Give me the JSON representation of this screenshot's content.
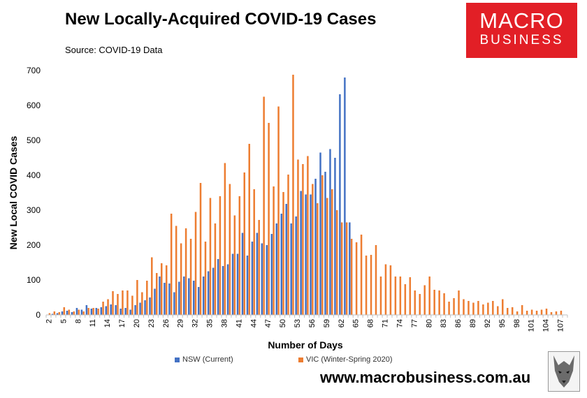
{
  "header": {
    "title": "New Locally-Acquired COVID-19 Cases",
    "source": "Source: COVID-19 Data"
  },
  "logo": {
    "line1": "MACRO",
    "line2": "BUSINESS"
  },
  "footer": {
    "website": "www.macrobusiness.com.au"
  },
  "colors": {
    "nsw": "#4472c4",
    "vic": "#ed7d31",
    "logo_bg": "#e21f26"
  },
  "chart_data": {
    "type": "bar",
    "xlabel": "Number of Days",
    "ylabel": "New Local COVID Cases",
    "ylim": [
      0,
      700
    ],
    "yticks": [
      0,
      100,
      200,
      300,
      400,
      500,
      600,
      700
    ],
    "x_start": 2,
    "x_end": 108,
    "x_tick_labels": [
      "2",
      "5",
      "8",
      "11",
      "14",
      "17",
      "20",
      "23",
      "26",
      "29",
      "32",
      "35",
      "38",
      "41",
      "44",
      "47",
      "50",
      "53",
      "56",
      "59",
      "62",
      "65",
      "68",
      "71",
      "74",
      "77",
      "80",
      "83",
      "86",
      "89",
      "92",
      "95",
      "98",
      "101",
      "104",
      "107"
    ],
    "grid": false,
    "legend": "bottom",
    "series": [
      {
        "name": "NSW (Current)",
        "values": [
          0,
          3,
          5,
          10,
          12,
          8,
          20,
          15,
          28,
          18,
          20,
          22,
          25,
          30,
          28,
          18,
          20,
          15,
          28,
          35,
          42,
          50,
          75,
          110,
          92,
          90,
          65,
          95,
          110,
          105,
          98,
          80,
          110,
          125,
          135,
          160,
          140,
          145,
          175,
          175,
          235,
          170,
          210,
          235,
          205,
          200,
          232,
          262,
          290,
          318,
          262,
          282,
          355,
          345,
          345,
          390,
          465,
          410,
          475,
          450,
          632,
          680,
          265
        ],
        "_x_start": 2
      },
      {
        "name": "VIC (Winter-Spring 2020)",
        "values": [
          5,
          10,
          8,
          22,
          15,
          10,
          15,
          10,
          20,
          20,
          18,
          38,
          45,
          68,
          60,
          70,
          70,
          55,
          100,
          65,
          98,
          165,
          120,
          148,
          142,
          290,
          255,
          205,
          248,
          218,
          295,
          378,
          210,
          335,
          262,
          340,
          435,
          375,
          285,
          340,
          408,
          490,
          360,
          272,
          625,
          550,
          368,
          597,
          352,
          402,
          688,
          445,
          432,
          455,
          375,
          320,
          400,
          335,
          360,
          300,
          265,
          265,
          218,
          208,
          230,
          170,
          172,
          200,
          110,
          145,
          142,
          110,
          110,
          88,
          108,
          70,
          60,
          85,
          110,
          72,
          70,
          62,
          38,
          48,
          70,
          45,
          40,
          35,
          40,
          30,
          35,
          40,
          25,
          45,
          20,
          22,
          10,
          28,
          12,
          15,
          12,
          15,
          18,
          8,
          10,
          12,
          0
        ]
      }
    ]
  }
}
